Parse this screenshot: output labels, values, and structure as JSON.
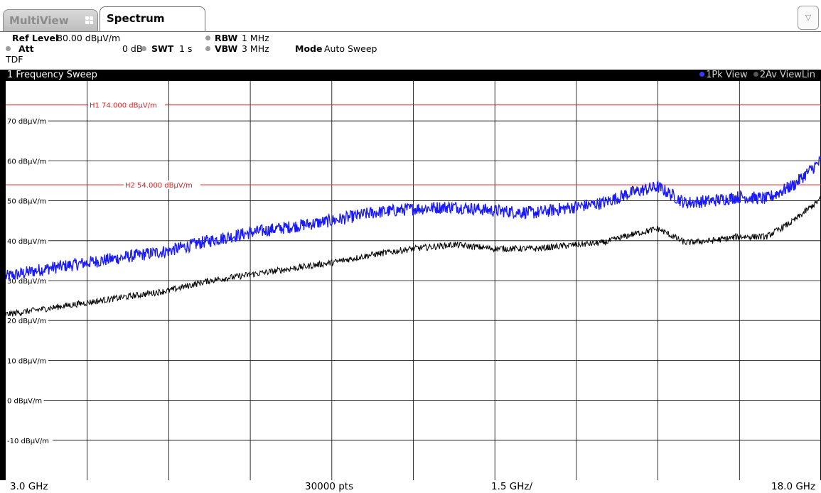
{
  "tabs": {
    "multiview_label": "MultiView",
    "spectrum_label": "Spectrum",
    "dropdown_symbol": "▽"
  },
  "settings": {
    "ref_level_label": "Ref Level",
    "ref_level_value": "80.00 dBµV/m",
    "att_label": "Att",
    "att_value": "0 dB",
    "tdf_label": "TDF",
    "swt_label": "SWT",
    "swt_value": "1 s",
    "rbw_label": "RBW",
    "rbw_value": "1 MHz",
    "vbw_label": "VBW",
    "vbw_value": "3 MHz",
    "mode_label": "Mode",
    "mode_value": "Auto Sweep"
  },
  "diagram": {
    "title": "1 Frequency Sweep",
    "trace1_label": "1Pk View",
    "trace2_label": "2Av ViewLin",
    "trace1_color": "#1a1aff",
    "trace2_color": "#000000",
    "limit_line_color": "#e02020"
  },
  "footer": {
    "start_freq": "3.0 GHz",
    "points": "30000 pts",
    "span_per_div": "1.5 GHz/",
    "stop_freq": "18.0 GHz"
  },
  "chart_data": {
    "type": "line",
    "x_unit": "GHz",
    "y_unit": "dBµV/m",
    "xlim": [
      3.0,
      18.0
    ],
    "ylim": [
      -20,
      80
    ],
    "y_ticks": [
      {
        "value": 70,
        "label": "70 dBµV/m"
      },
      {
        "value": 60,
        "label": "60 dBµV/m"
      },
      {
        "value": 50,
        "label": "50 dBµV/m"
      },
      {
        "value": 40,
        "label": "40 dBµV/m"
      },
      {
        "value": 30,
        "label": "30 dBµV/m"
      },
      {
        "value": 20,
        "label": "20 dBµV/m"
      },
      {
        "value": 10,
        "label": "10 dBµV/m"
      },
      {
        "value": 0,
        "label": "0 dBµV/m"
      },
      {
        "value": -10,
        "label": "-10 dBµV/m"
      }
    ],
    "x_gridlines": [
      4.5,
      6.0,
      7.5,
      9.0,
      10.5,
      12.0,
      13.5,
      15.0,
      16.5
    ],
    "grid": true,
    "limit_lines": [
      {
        "name": "H1",
        "value": 74.0,
        "label": "H1  74.000 dBµV/m"
      },
      {
        "name": "H2",
        "value": 54.0,
        "label": "H2  54.000 dBµV/m"
      }
    ],
    "series": [
      {
        "name": "1Pk View",
        "color": "#1a1aff",
        "x": [
          3.0,
          3.75,
          4.5,
          5.25,
          6.0,
          6.75,
          7.5,
          8.25,
          9.0,
          9.75,
          10.5,
          11.25,
          12.0,
          12.75,
          13.5,
          14.0,
          14.5,
          15.0,
          15.5,
          16.0,
          16.5,
          17.0,
          17.5,
          18.0
        ],
        "values": [
          31,
          33,
          34.5,
          36,
          37.5,
          40,
          42,
          43.5,
          45,
          47,
          48,
          48.5,
          47.5,
          47,
          48.5,
          49.5,
          52,
          53.5,
          49.5,
          50,
          51,
          50.5,
          54,
          60
        ]
      },
      {
        "name": "2Av ViewLin",
        "color": "#000000",
        "x": [
          3.0,
          3.75,
          4.5,
          5.25,
          6.0,
          6.75,
          7.5,
          8.25,
          9.0,
          9.75,
          10.5,
          11.25,
          12.0,
          12.75,
          13.5,
          14.0,
          14.5,
          15.0,
          15.5,
          16.0,
          16.5,
          17.0,
          17.5,
          18.0
        ],
        "values": [
          21.5,
          23,
          24.5,
          26,
          27.5,
          30,
          31.5,
          33,
          34.5,
          36.5,
          38,
          39,
          38,
          38,
          39,
          39.5,
          41.5,
          43,
          39.5,
          40,
          41,
          41,
          45,
          50.5
        ]
      }
    ]
  }
}
